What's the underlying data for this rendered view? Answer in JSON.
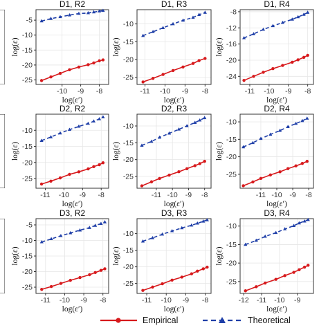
{
  "legend": {
    "empirical": "Empirical",
    "theoretical": "Theoretical"
  },
  "colors": {
    "empirical": "#d7191c",
    "theoretical": "#1f3fa8"
  },
  "chart_data": [
    {
      "type": "line",
      "title": "",
      "xlabel": "",
      "ylabel": "",
      "partial": "left-row-1",
      "xlim": [
        -13,
        -12.3
      ],
      "ylim": [
        -27,
        -4
      ],
      "xticks": [],
      "yticks": [],
      "series": [
        {
          "name": "Empirical",
          "x": [
            -12.5
          ],
          "y": [
            -20
          ]
        },
        {
          "name": "Theoretical",
          "x": [
            -12.5
          ],
          "y": [
            -5.5
          ]
        }
      ]
    },
    {
      "type": "line",
      "title": "D1, R2",
      "xlabel": "log(ε′)",
      "ylabel": "log(ε)",
      "xlim": [
        -11.4,
        -7.5
      ],
      "ylim": [
        -26.5,
        -1.5
      ],
      "xticks": [
        -10,
        -9,
        -8
      ],
      "yticks": [
        -25,
        -20,
        -15,
        -10,
        -5
      ],
      "series": [
        {
          "name": "Empirical",
          "x": [
            -11.1,
            -10.6,
            -10.1,
            -9.6,
            -9.1,
            -8.6,
            -8.3,
            -8.0,
            -7.8
          ],
          "y": [
            -25.2,
            -24.0,
            -22.8,
            -21.6,
            -20.7,
            -19.9,
            -19.3,
            -18.6,
            -18.3
          ]
        },
        {
          "name": "Theoretical",
          "x": [
            -11.1,
            -10.6,
            -10.1,
            -9.6,
            -9.1,
            -8.6,
            -8.3,
            -8.0,
            -7.8
          ],
          "y": [
            -5.3,
            -4.5,
            -3.9,
            -3.3,
            -2.8,
            -2.6,
            -2.3,
            -2.0,
            -1.8
          ]
        }
      ]
    },
    {
      "type": "line",
      "title": "D1, R3",
      "xlabel": "log(ε′)",
      "ylabel": "log(ε)",
      "xlim": [
        -11.4,
        -7.7
      ],
      "ylim": [
        -27,
        -6
      ],
      "xticks": [
        -11,
        -10,
        -9,
        -8
      ],
      "yticks": [
        -25,
        -20,
        -15,
        -10
      ],
      "series": [
        {
          "name": "Empirical",
          "x": [
            -11.1,
            -10.6,
            -10.1,
            -9.6,
            -9.1,
            -8.6,
            -8.3,
            -8.0
          ],
          "y": [
            -26.3,
            -25.3,
            -24.2,
            -23.1,
            -22.1,
            -21.1,
            -20.3,
            -19.7
          ]
        },
        {
          "name": "Theoretical",
          "x": [
            -11.1,
            -10.6,
            -10.1,
            -9.6,
            -9.1,
            -8.6,
            -8.3,
            -8.0
          ],
          "y": [
            -13.3,
            -12.2,
            -11.1,
            -10.0,
            -9.0,
            -8.2,
            -7.4,
            -6.8
          ]
        }
      ]
    },
    {
      "type": "line",
      "title": "D1, R4",
      "xlabel": "log(ε′)",
      "ylabel": "log(ε)",
      "xlim": [
        -11.5,
        -7.7
      ],
      "ylim": [
        -26,
        -7.5
      ],
      "xticks": [
        -11,
        -10,
        -9,
        -8
      ],
      "yticks": [
        -24,
        -20,
        -16,
        -12,
        -8
      ],
      "series": [
        {
          "name": "Empirical",
          "x": [
            -11.3,
            -10.8,
            -10.3,
            -9.8,
            -9.3,
            -8.8,
            -8.5,
            -8.2,
            -8.0
          ],
          "y": [
            -25.0,
            -24.0,
            -23.0,
            -22.1,
            -21.3,
            -20.5,
            -19.9,
            -19.3,
            -18.8
          ]
        },
        {
          "name": "Theoretical",
          "x": [
            -11.3,
            -10.8,
            -10.3,
            -9.8,
            -9.3,
            -8.8,
            -8.5,
            -8.2,
            -8.0
          ],
          "y": [
            -14.5,
            -13.5,
            -12.4,
            -11.5,
            -10.7,
            -9.9,
            -9.3,
            -8.7,
            -8.2
          ]
        }
      ]
    },
    {
      "type": "line",
      "title": "D2, R2",
      "xlabel": "log(ε′)",
      "ylabel": "log(ε)",
      "xlim": [
        -11.5,
        -7.6
      ],
      "ylim": [
        -28,
        -5
      ],
      "xticks": [
        -11,
        -10,
        -9,
        -8
      ],
      "yticks": [
        -25,
        -20,
        -15,
        -10
      ],
      "series": [
        {
          "name": "Empirical",
          "x": [
            -11.2,
            -10.7,
            -10.2,
            -9.7,
            -9.2,
            -8.7,
            -8.4,
            -8.1,
            -7.9
          ],
          "y": [
            -26.7,
            -25.8,
            -24.8,
            -23.7,
            -22.9,
            -22.0,
            -21.3,
            -20.7,
            -20.1
          ]
        },
        {
          "name": "Theoretical",
          "x": [
            -11.2,
            -10.7,
            -10.2,
            -9.7,
            -9.2,
            -8.7,
            -8.4,
            -8.1,
            -7.9
          ],
          "y": [
            -13.2,
            -12.1,
            -10.9,
            -9.8,
            -8.8,
            -7.9,
            -7.2,
            -6.5,
            -5.9
          ]
        }
      ]
    },
    {
      "type": "line",
      "title": "D2, R3",
      "xlabel": "log(ε′)",
      "ylabel": "log(ε)",
      "xlim": [
        -12.2,
        -7.6
      ],
      "ylim": [
        -28.5,
        -6.5
      ],
      "xticks": [
        -11,
        -10,
        -9,
        -8
      ],
      "yticks": [
        -25,
        -20,
        -15,
        -10
      ],
      "series": [
        {
          "name": "Empirical",
          "x": [
            -11.9,
            -11.3,
            -10.8,
            -10.2,
            -9.6,
            -9.1,
            -8.6,
            -8.3,
            -8.0
          ],
          "y": [
            -27.8,
            -26.6,
            -25.6,
            -24.6,
            -23.6,
            -22.7,
            -21.8,
            -21.2,
            -20.5
          ]
        },
        {
          "name": "Theoretical",
          "x": [
            -11.9,
            -11.3,
            -10.8,
            -10.2,
            -9.6,
            -9.1,
            -8.6,
            -8.3,
            -8.0
          ],
          "y": [
            -15.8,
            -14.6,
            -13.4,
            -12.2,
            -11.0,
            -10.0,
            -9.0,
            -8.3,
            -7.6
          ]
        }
      ]
    },
    {
      "type": "line",
      "title": "D2, R4",
      "xlabel": "log(ε′)",
      "ylabel": "log(ε)",
      "xlim": [
        -12.3,
        -7.7
      ],
      "ylim": [
        -29,
        -7.8
      ],
      "xticks": [
        -11,
        -10,
        -9,
        -8
      ],
      "yticks": [
        -25,
        -20,
        -15,
        -10
      ],
      "series": [
        {
          "name": "Empirical",
          "x": [
            -12.1,
            -11.5,
            -11.0,
            -10.4,
            -9.8,
            -9.3,
            -8.8,
            -8.4,
            -8.1
          ],
          "y": [
            -28.3,
            -27.2,
            -26.2,
            -25.2,
            -24.3,
            -23.4,
            -22.6,
            -21.9,
            -21.3
          ]
        },
        {
          "name": "Theoretical",
          "x": [
            -12.1,
            -11.5,
            -11.0,
            -10.4,
            -9.8,
            -9.3,
            -8.8,
            -8.4,
            -8.1
          ],
          "y": [
            -17.2,
            -16.0,
            -14.8,
            -13.6,
            -12.5,
            -11.4,
            -10.5,
            -9.7,
            -9.0
          ]
        }
      ]
    },
    {
      "type": "line",
      "title": "",
      "xlabel": "",
      "ylabel": "",
      "partial": "left-row-2",
      "xlim": [
        -13,
        -12.3
      ],
      "ylim": [
        -27,
        -4
      ],
      "xticks": [],
      "yticks": [],
      "series": [
        {
          "name": "Empirical",
          "x": [
            -12.5
          ],
          "y": [
            -21
          ]
        },
        {
          "name": "Theoretical",
          "x": [
            -12.5
          ],
          "y": [
            -6
          ]
        }
      ]
    },
    {
      "type": "line",
      "title": "D3, R2",
      "xlabel": "log(ε′)",
      "ylabel": "log(ε)",
      "xlim": [
        -11.5,
        -7.7
      ],
      "ylim": [
        -27,
        -3
      ],
      "xticks": [
        -11,
        -10,
        -9,
        -8
      ],
      "yticks": [
        -25,
        -20,
        -15,
        -10,
        -5
      ],
      "series": [
        {
          "name": "Empirical",
          "x": [
            -11.2,
            -10.7,
            -10.2,
            -9.7,
            -9.2,
            -8.7,
            -8.4,
            -8.1,
            -7.9
          ],
          "y": [
            -25.7,
            -24.8,
            -23.8,
            -22.8,
            -21.9,
            -21.0,
            -20.3,
            -19.6,
            -19.1
          ]
        },
        {
          "name": "Theoretical",
          "x": [
            -11.2,
            -10.7,
            -10.2,
            -9.7,
            -9.2,
            -8.7,
            -8.4,
            -8.1,
            -7.9
          ],
          "y": [
            -10.5,
            -9.5,
            -8.5,
            -7.6,
            -6.7,
            -5.9,
            -5.2,
            -4.6,
            -4.1
          ]
        }
      ]
    },
    {
      "type": "line",
      "title": "D3, R3",
      "xlabel": "log(ε′)",
      "ylabel": "log(ε)",
      "xlim": [
        -11.5,
        -7.7
      ],
      "ylim": [
        -28,
        -5.5
      ],
      "xticks": [
        -11,
        -10,
        -9,
        -8
      ],
      "yticks": [
        -25,
        -20,
        -15,
        -10
      ],
      "series": [
        {
          "name": "Empirical",
          "x": [
            -11.2,
            -10.7,
            -10.2,
            -9.7,
            -9.2,
            -8.7,
            -8.4,
            -8.1,
            -7.9
          ],
          "y": [
            -27.1,
            -26.1,
            -25.1,
            -24.0,
            -23.1,
            -22.1,
            -21.3,
            -20.6,
            -20.1
          ]
        },
        {
          "name": "Theoretical",
          "x": [
            -11.2,
            -10.7,
            -10.2,
            -9.7,
            -9.2,
            -8.7,
            -8.4,
            -8.1,
            -7.9
          ],
          "y": [
            -12.3,
            -11.3,
            -10.2,
            -9.2,
            -8.3,
            -7.5,
            -6.9,
            -6.3,
            -5.9
          ]
        }
      ]
    },
    {
      "type": "line",
      "title": "D3, R4",
      "xlabel": "log(ε′)",
      "ylabel": "log(ε)",
      "xlim": [
        -12.2,
        -8.1
      ],
      "ylim": [
        -28.2,
        -8
      ],
      "xticks": [
        -12,
        -11,
        -10,
        -9
      ],
      "yticks": [
        -25,
        -20,
        -15,
        -10
      ],
      "series": [
        {
          "name": "Empirical",
          "x": [
            -11.9,
            -11.3,
            -10.8,
            -10.2,
            -9.7,
            -9.2,
            -8.9,
            -8.6,
            -8.4
          ],
          "y": [
            -27.5,
            -26.4,
            -25.4,
            -24.4,
            -23.4,
            -22.5,
            -21.8,
            -21.1,
            -20.6
          ]
        },
        {
          "name": "Theoretical",
          "x": [
            -11.9,
            -11.3,
            -10.8,
            -10.2,
            -9.7,
            -9.2,
            -8.9,
            -8.6,
            -8.4
          ],
          "y": [
            -15.0,
            -13.9,
            -12.8,
            -11.8,
            -10.8,
            -9.9,
            -9.2,
            -8.7,
            -8.3
          ]
        }
      ]
    },
    {
      "type": "line",
      "title": "",
      "xlabel": "",
      "ylabel": "",
      "partial": "left-row-3",
      "xlim": [
        -13,
        -12.3
      ],
      "ylim": [
        -27,
        -4
      ],
      "xticks": [],
      "yticks": [],
      "series": [
        {
          "name": "Empirical",
          "x": [
            -12.5
          ],
          "y": [
            -20
          ]
        },
        {
          "name": "Theoretical",
          "x": [
            -12.5
          ],
          "y": [
            -5
          ]
        }
      ]
    }
  ]
}
